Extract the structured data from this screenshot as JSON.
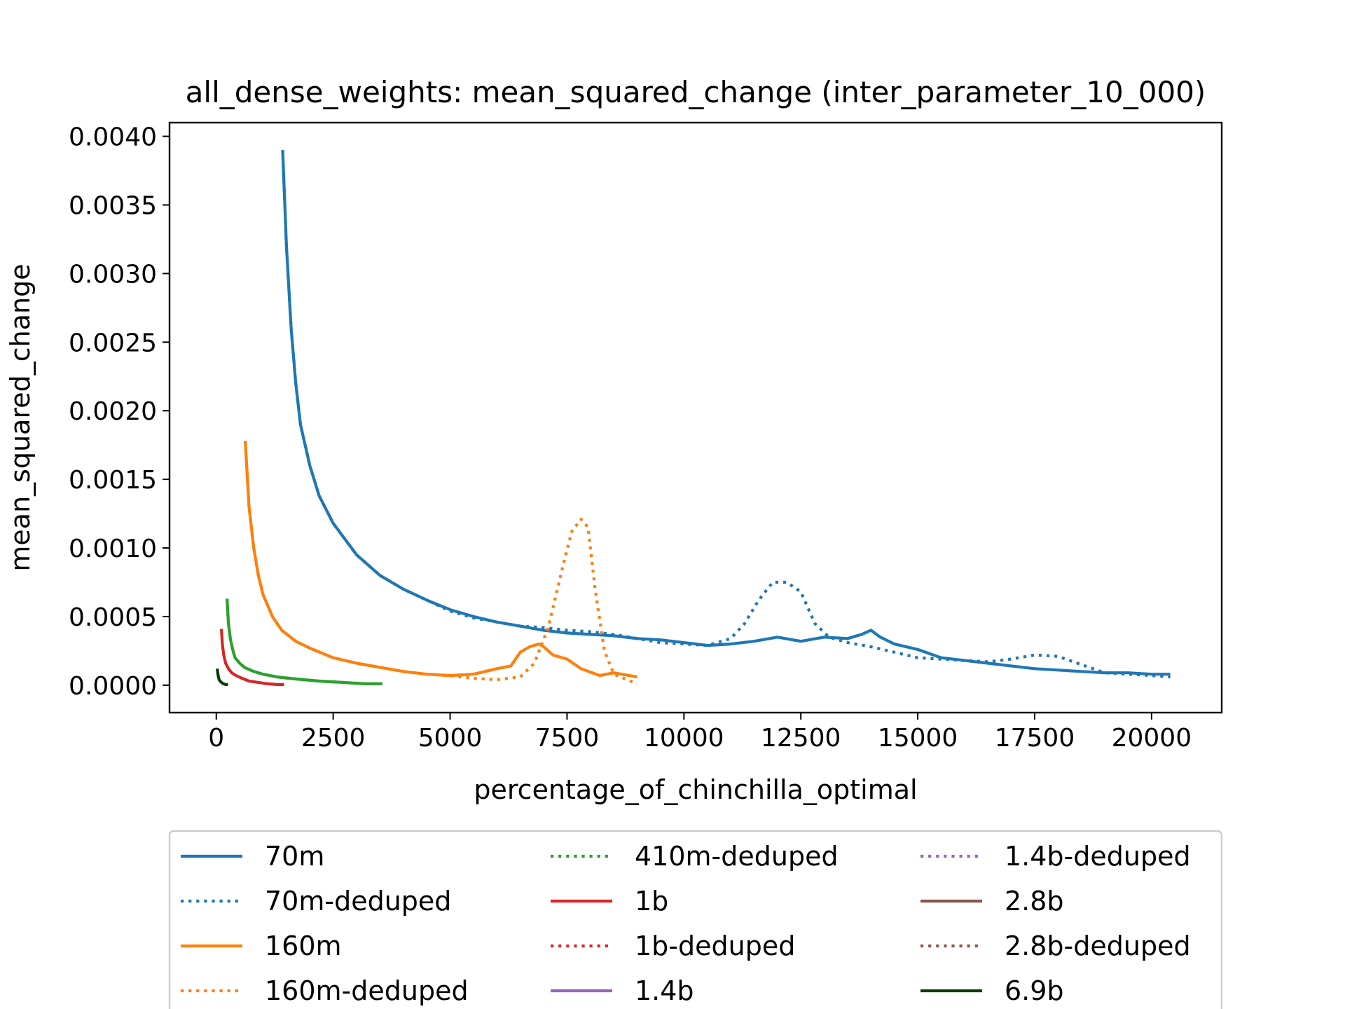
{
  "chart_data": {
    "type": "line",
    "title": "all_dense_weights: mean_squared_change (inter_parameter_10_000)",
    "xlabel": "percentage_of_chinchilla_optimal",
    "ylabel": "mean_squared_change",
    "xlim": [
      -1000,
      21500
    ],
    "ylim": [
      -0.0002,
      0.0041
    ],
    "x_ticks": [
      0,
      2500,
      5000,
      7500,
      10000,
      12500,
      15000,
      17500,
      20000
    ],
    "x_tick_labels": [
      "0",
      "2500",
      "5000",
      "7500",
      "10000",
      "12500",
      "15000",
      "17500",
      "20000"
    ],
    "y_ticks": [
      0,
      0.0005,
      0.001,
      0.0015,
      0.002,
      0.0025,
      0.003,
      0.0035,
      0.004
    ],
    "y_tick_labels": [
      "0.0000",
      "0.0005",
      "0.0010",
      "0.0015",
      "0.0020",
      "0.0025",
      "0.0030",
      "0.0035",
      "0.0040"
    ],
    "grid": false,
    "legend_position": "below-plot",
    "series": [
      {
        "name": "70m",
        "color": "#1f77b4",
        "style": "solid",
        "x": [
          1420,
          1500,
          1600,
          1700,
          1800,
          2000,
          2200,
          2500,
          3000,
          3500,
          4000,
          4500,
          5000,
          5500,
          6000,
          6500,
          7000,
          7500,
          8000,
          8500,
          9000,
          9500,
          10000,
          10500,
          11000,
          11500,
          12000,
          12500,
          13000,
          13500,
          13800,
          14000,
          14200,
          14500,
          15000,
          15500,
          16000,
          16500,
          17000,
          17500,
          18000,
          18500,
          19000,
          19500,
          20000,
          20400
        ],
        "y": [
          0.0039,
          0.0032,
          0.0026,
          0.0022,
          0.0019,
          0.0016,
          0.00138,
          0.00118,
          0.00095,
          0.0008,
          0.0007,
          0.00062,
          0.00055,
          0.0005,
          0.00046,
          0.00043,
          0.0004,
          0.00038,
          0.00037,
          0.00036,
          0.00034,
          0.00033,
          0.00031,
          0.00029,
          0.0003,
          0.00032,
          0.00035,
          0.00032,
          0.00035,
          0.00034,
          0.00037,
          0.0004,
          0.00035,
          0.0003,
          0.00026,
          0.0002,
          0.00018,
          0.00016,
          0.00014,
          0.00012,
          0.00011,
          0.0001,
          9e-05,
          9e-05,
          8e-05,
          8e-05
        ]
      },
      {
        "name": "70m-deduped",
        "color": "#1f77b4",
        "style": "dotted",
        "x": [
          1420,
          1500,
          1600,
          1700,
          1800,
          2000,
          2200,
          2500,
          3000,
          3500,
          4000,
          4500,
          5000,
          5500,
          6000,
          6500,
          7000,
          7500,
          8000,
          8500,
          9000,
          9500,
          10000,
          10500,
          11000,
          11300,
          11600,
          11900,
          12200,
          12500,
          12800,
          13100,
          13500,
          14000,
          14500,
          15000,
          15500,
          16000,
          16500,
          17000,
          17500,
          18000,
          18500,
          19000,
          19500,
          20000,
          20400
        ],
        "y": [
          0.0039,
          0.0032,
          0.0026,
          0.0022,
          0.0019,
          0.0016,
          0.00138,
          0.00118,
          0.00095,
          0.0008,
          0.0007,
          0.00062,
          0.00054,
          0.00049,
          0.00046,
          0.00043,
          0.00042,
          0.0004,
          0.00039,
          0.00037,
          0.00034,
          0.00031,
          0.0003,
          0.00029,
          0.00034,
          0.00045,
          0.00062,
          0.00075,
          0.00075,
          0.00068,
          0.00045,
          0.00035,
          0.00031,
          0.00028,
          0.00024,
          0.0002,
          0.00019,
          0.00018,
          0.00017,
          0.00019,
          0.00022,
          0.00021,
          0.00015,
          9e-05,
          8e-05,
          7e-05,
          6e-05
        ]
      },
      {
        "name": "160m",
        "color": "#ff7f0e",
        "style": "solid",
        "x": [
          620,
          700,
          800,
          900,
          1000,
          1200,
          1400,
          1700,
          2000,
          2500,
          3000,
          3500,
          4000,
          4500,
          5000,
          5500,
          6000,
          6300,
          6500,
          6700,
          6900,
          7000,
          7200,
          7500,
          7800,
          8200,
          8500,
          9000
        ],
        "y": [
          0.00178,
          0.0013,
          0.001,
          0.0008,
          0.00066,
          0.0005,
          0.0004,
          0.00032,
          0.00027,
          0.0002,
          0.00016,
          0.00013,
          0.0001,
          8e-05,
          7e-05,
          8e-05,
          0.00012,
          0.00014,
          0.00024,
          0.00028,
          0.0003,
          0.00028,
          0.00022,
          0.00019,
          0.00012,
          7e-05,
          9e-05,
          6e-05
        ]
      },
      {
        "name": "160m-deduped",
        "color": "#ff7f0e",
        "style": "dotted",
        "x": [
          620,
          700,
          800,
          900,
          1000,
          1200,
          1400,
          1700,
          2000,
          2500,
          3000,
          3500,
          4000,
          4500,
          5000,
          5500,
          6000,
          6500,
          6800,
          7100,
          7400,
          7600,
          7800,
          7950,
          8100,
          8300,
          8500,
          9000
        ],
        "y": [
          0.00178,
          0.0013,
          0.001,
          0.0008,
          0.00066,
          0.0005,
          0.0004,
          0.00032,
          0.00027,
          0.0002,
          0.00016,
          0.00013,
          0.0001,
          8e-05,
          7e-05,
          5e-05,
          4e-05,
          6e-05,
          0.00016,
          0.00042,
          0.00085,
          0.00112,
          0.00121,
          0.00115,
          0.0007,
          0.00025,
          8e-05,
          1e-05
        ]
      },
      {
        "name": "410m-deduped",
        "color": "#2ca02c",
        "style": "dotted",
        "x": [
          230,
          260,
          300,
          350,
          400,
          500,
          600,
          800,
          1000,
          1300,
          1700,
          2200,
          2700,
          3200,
          3550
        ],
        "y": [
          0.00063,
          0.00045,
          0.00034,
          0.00026,
          0.0002,
          0.00016,
          0.00013,
          0.0001,
          8e-05,
          6e-05,
          4.5e-05,
          3e-05,
          2e-05,
          1e-05,
          1e-05
        ]
      },
      {
        "name": "410m",
        "color": "#2ca02c",
        "style": "solid",
        "x": [
          230,
          260,
          300,
          350,
          400,
          500,
          600,
          800,
          1000,
          1300,
          1700,
          2200,
          2700,
          3200,
          3550
        ],
        "y": [
          0.00063,
          0.00045,
          0.00034,
          0.00026,
          0.0002,
          0.00016,
          0.00013,
          0.0001,
          8e-05,
          6e-05,
          4.5e-05,
          3e-05,
          2e-05,
          1e-05,
          1e-05
        ]
      },
      {
        "name": "1b",
        "color": "#d62728",
        "style": "solid",
        "x": [
          110,
          130,
          160,
          200,
          260,
          330,
          420,
          550,
          700,
          900,
          1100,
          1300,
          1450
        ],
        "y": [
          0.00041,
          0.0003,
          0.00022,
          0.00016,
          0.00012,
          9e-05,
          7e-05,
          5e-05,
          3e-05,
          2e-05,
          1e-05,
          5e-06,
          5e-06
        ]
      },
      {
        "name": "1b-deduped",
        "color": "#d62728",
        "style": "dotted",
        "x": [],
        "y": []
      },
      {
        "name": "1.4b",
        "color": "#9467bd",
        "style": "solid",
        "x": [],
        "y": []
      },
      {
        "name": "1.4b-deduped",
        "color": "#9467bd",
        "style": "dotted",
        "x": [],
        "y": []
      },
      {
        "name": "2.8b",
        "color": "#8c564b",
        "style": "solid",
        "x": [],
        "y": []
      },
      {
        "name": "2.8b-deduped",
        "color": "#8c564b",
        "style": "dotted",
        "x": [],
        "y": []
      },
      {
        "name": "6.9b",
        "color": "#0b3d0b",
        "style": "solid",
        "x": [
          20,
          30,
          45,
          60,
          80,
          110,
          150,
          200,
          250
        ],
        "y": [
          0.00012,
          9e-05,
          6e-05,
          4e-05,
          3e-05,
          2e-05,
          1e-05,
          5e-06,
          5e-06
        ]
      }
    ],
    "legend": [
      {
        "label": "70m",
        "color": "#1f77b4",
        "style": "solid"
      },
      {
        "label": "70m-deduped",
        "color": "#1f77b4",
        "style": "dotted"
      },
      {
        "label": "160m",
        "color": "#ff7f0e",
        "style": "solid"
      },
      {
        "label": "160m-deduped",
        "color": "#ff7f0e",
        "style": "dotted"
      },
      {
        "label": "410m-deduped",
        "color": "#2ca02c",
        "style": "dotted"
      },
      {
        "label": "1b",
        "color": "#d62728",
        "style": "solid"
      },
      {
        "label": "1b-deduped",
        "color": "#d62728",
        "style": "dotted"
      },
      {
        "label": "1.4b",
        "color": "#9467bd",
        "style": "solid"
      },
      {
        "label": "1.4b-deduped",
        "color": "#9467bd",
        "style": "dotted"
      },
      {
        "label": "2.8b",
        "color": "#8c564b",
        "style": "solid"
      },
      {
        "label": "2.8b-deduped",
        "color": "#8c564b",
        "style": "dotted"
      },
      {
        "label": "6.9b",
        "color": "#0b3d0b",
        "style": "solid"
      }
    ]
  }
}
